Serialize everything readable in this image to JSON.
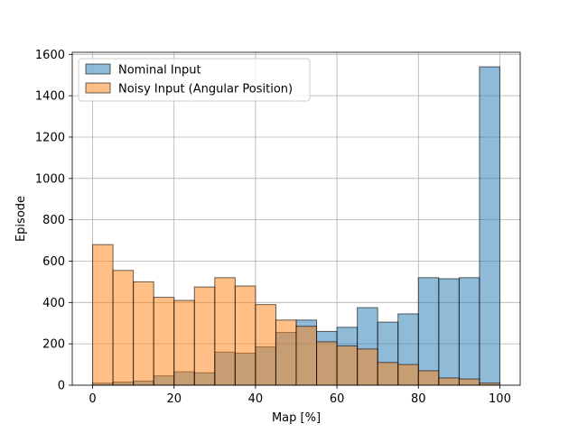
{
  "chart_data": {
    "type": "bar",
    "title": "",
    "xlabel": "Map [%]",
    "ylabel": "Episode",
    "xlim": [
      -5,
      105
    ],
    "ylim": [
      0,
      1610
    ],
    "xticks": [
      0,
      20,
      40,
      60,
      80,
      100
    ],
    "yticks": [
      0,
      200,
      400,
      600,
      800,
      1000,
      1200,
      1400,
      1600
    ],
    "grid": true,
    "legend_position": "top-left",
    "bin_edges": [
      0,
      5,
      10,
      15,
      20,
      25,
      30,
      35,
      40,
      45,
      50,
      55,
      60,
      65,
      70,
      75,
      80,
      85,
      90,
      95,
      100
    ],
    "series": [
      {
        "name": "Nominal Input",
        "color": "#1f77b4",
        "values": [
          10,
          15,
          20,
          45,
          65,
          60,
          160,
          155,
          185,
          255,
          315,
          260,
          280,
          375,
          305,
          345,
          520,
          515,
          520,
          1540
        ]
      },
      {
        "name": "Noisy Input (Angular Position)",
        "color": "#ff7f0e",
        "values": [
          680,
          555,
          500,
          425,
          410,
          475,
          520,
          480,
          390,
          315,
          285,
          210,
          190,
          175,
          110,
          100,
          70,
          35,
          30,
          10
        ]
      }
    ]
  }
}
